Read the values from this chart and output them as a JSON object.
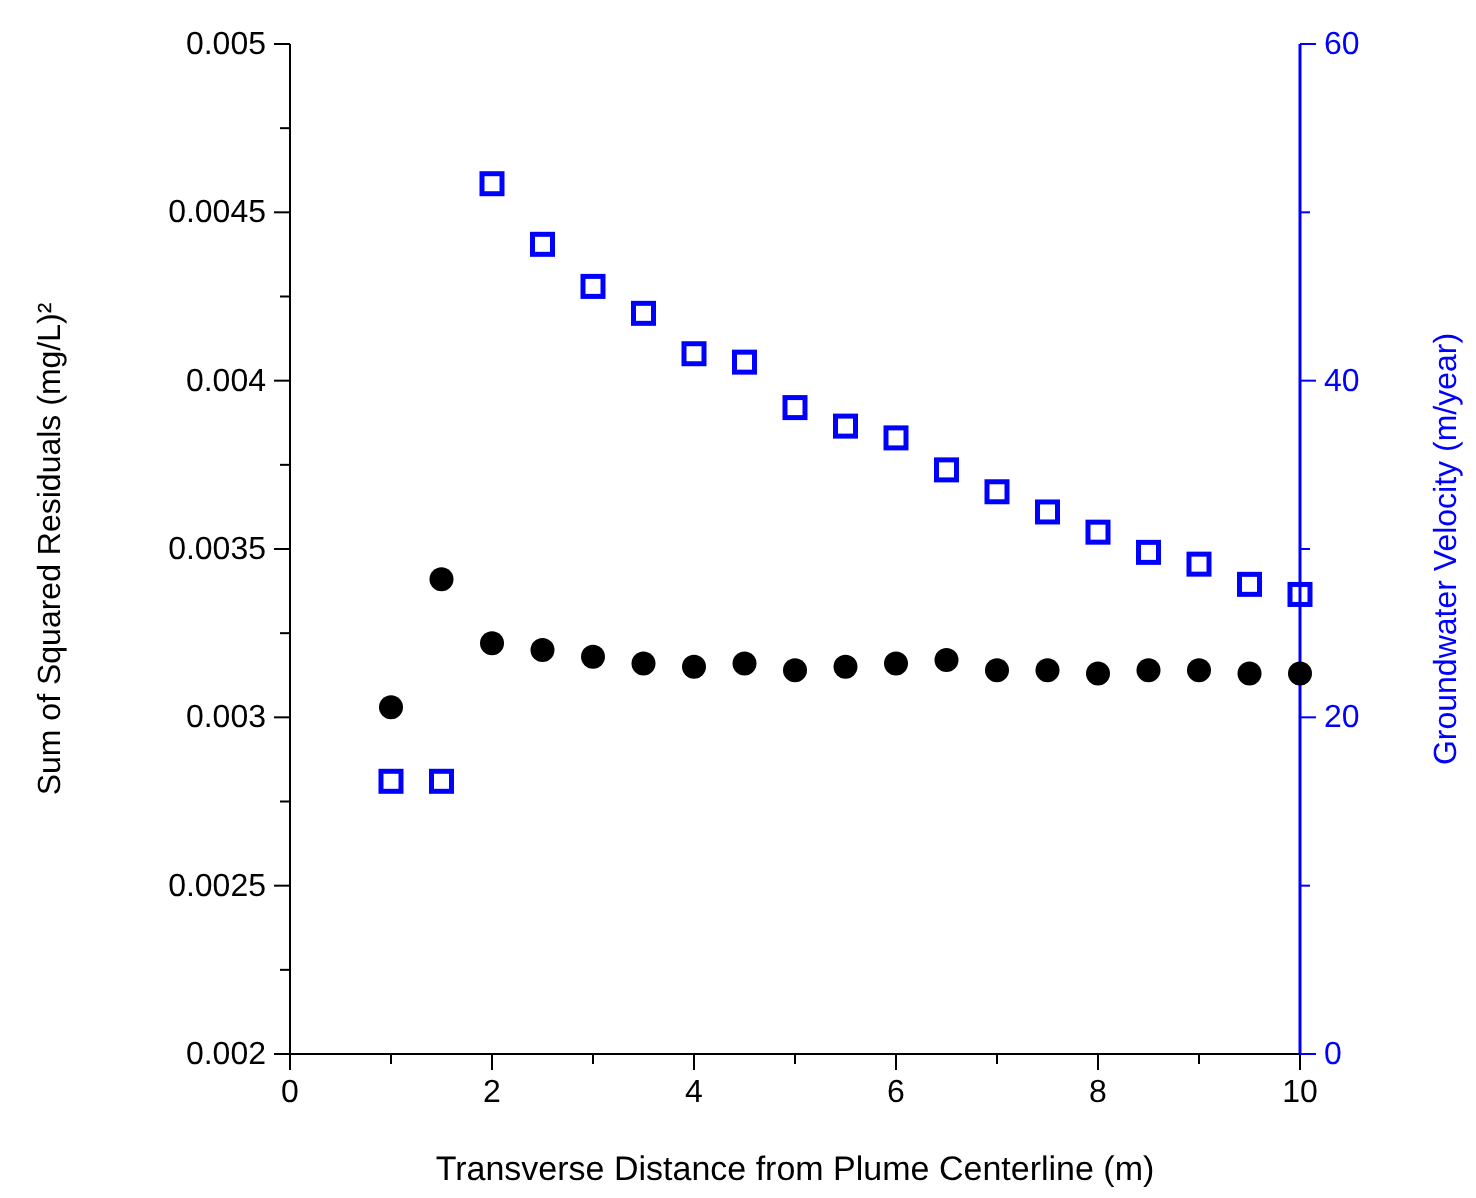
{
  "chart_data": {
    "type": "scatter",
    "xlabel": "Transverse Distance from Plume Centerline (m)",
    "ylabel": "Sum of Squared Residuals (mg/L)²",
    "y2label": "Groundwater Velocity (m/year)",
    "x": [
      1,
      1.5,
      2,
      2.5,
      3,
      3.5,
      4,
      4.5,
      5,
      5.5,
      6,
      6.5,
      7,
      7.5,
      8,
      8.5,
      9,
      9.5,
      10
    ],
    "xlim": [
      0,
      10
    ],
    "xticks": [
      0,
      {
        "value": 1,
        "label": null
      },
      2,
      {
        "value": 3,
        "label": null
      },
      4,
      {
        "value": 5,
        "label": null
      },
      6,
      {
        "value": 7,
        "label": null
      },
      8,
      {
        "value": 9,
        "label": null
      },
      10
    ],
    "ylim": [
      0.002,
      0.005
    ],
    "yticks": [
      0.002,
      {
        "value": 0.00225,
        "label": null
      },
      0.0025,
      {
        "value": 0.00275,
        "label": null
      },
      0.003,
      {
        "value": 0.00325,
        "label": null
      },
      0.0035,
      {
        "value": 0.00375,
        "label": null
      },
      0.004,
      {
        "value": 0.00425,
        "label": null
      },
      0.0045,
      {
        "value": 0.00475,
        "label": null
      },
      0.005
    ],
    "y2lim": [
      0,
      60
    ],
    "y2ticks": [
      0,
      {
        "value": 10,
        "label": null
      },
      20,
      {
        "value": 30,
        "label": null
      },
      40,
      {
        "value": 50,
        "label": null
      },
      60
    ],
    "grid": false,
    "series": [
      {
        "color": "#000000",
        "marker": "circle",
        "values": [
          0.00303,
          0.00341,
          0.00322,
          0.0032,
          0.00318,
          0.00316,
          0.00315,
          0.00316,
          0.00314,
          0.00315,
          0.00316,
          0.00317,
          0.00314,
          0.00314,
          0.00313,
          0.00314,
          0.00314,
          0.00313,
          0.00313
        ]
      },
      {
        "color": "#0000ff",
        "marker": "square",
        "axis": "y2",
        "values": [
          16.2,
          16.2,
          51.7,
          48.1,
          45.6,
          44.0,
          41.6,
          41.1,
          38.4,
          37.3,
          36.6,
          34.7,
          33.4,
          32.2,
          31.0,
          29.8,
          29.1,
          27.9,
          27.3
        ]
      }
    ]
  }
}
